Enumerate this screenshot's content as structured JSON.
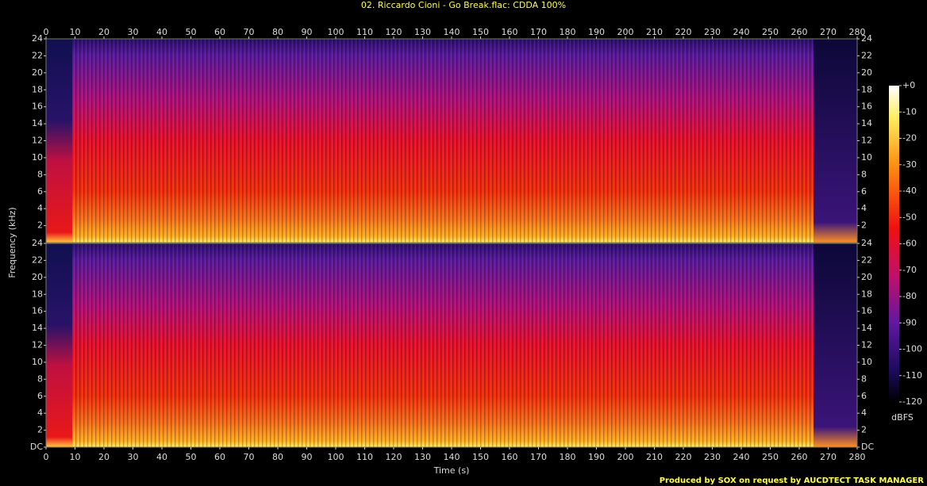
{
  "chart_data": {
    "type": "spectrogram",
    "title": "02. Riccardo Cioni - Go Break.flac: CDDA 100%",
    "x_label": "Time (s)",
    "y_label": "Frequency (kHz)",
    "colorbar_label": "dBFS",
    "footer": "Produced by SOX on request by AUCDTECT TASK MANAGER",
    "xlim": [
      0,
      280
    ],
    "xticks": [
      0,
      10,
      20,
      30,
      40,
      50,
      60,
      70,
      80,
      90,
      100,
      110,
      120,
      130,
      140,
      150,
      160,
      170,
      180,
      190,
      200,
      210,
      220,
      230,
      240,
      250,
      260,
      270,
      280
    ],
    "ylim": [
      0,
      24
    ],
    "yticks": [
      {
        "value": 0,
        "label": "DC"
      },
      2,
      4,
      6,
      8,
      10,
      12,
      14,
      16,
      18,
      20,
      22,
      24
    ],
    "clim": [
      -120,
      0
    ],
    "cticks": [
      {
        "value": 0,
        "label": "+0"
      },
      -10,
      -20,
      -30,
      -40,
      -50,
      -60,
      -70,
      -80,
      -90,
      -100,
      -110,
      -120
    ],
    "channels": 2
  }
}
